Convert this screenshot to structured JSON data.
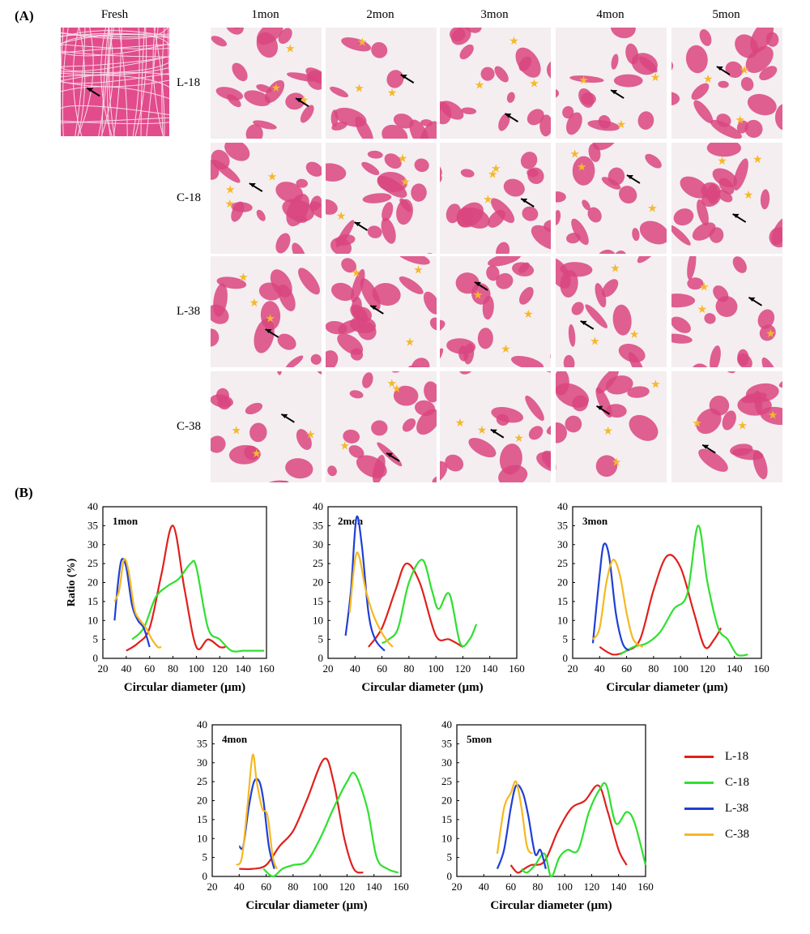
{
  "figure": {
    "panel_a_label": "(A)",
    "panel_b_label": "(B)",
    "fresh_label": "Fresh",
    "columns": [
      "1mon",
      "2mon",
      "3mon",
      "4mon",
      "5mon"
    ],
    "rows": [
      "L-18",
      "C-18",
      "L-38",
      "C-38"
    ]
  },
  "colors": {
    "L-18": "#e0201c",
    "C-18": "#2fe02f",
    "L-38": "#1f3fd6",
    "C-38": "#f5b820",
    "tissue": "#d9457f",
    "star": "#f5b82a"
  },
  "legend": [
    "L-18",
    "C-18",
    "L-38",
    "C-38"
  ],
  "chart_data": [
    {
      "type": "line",
      "title": "1mon",
      "xlabel": "Circular diameter (µm)",
      "ylabel": "Ratio (%)",
      "xlim": [
        20,
        160
      ],
      "ylim": [
        0,
        40
      ],
      "xticks": [
        20,
        40,
        60,
        80,
        100,
        120,
        140,
        160
      ],
      "yticks": [
        0,
        5,
        10,
        15,
        20,
        25,
        30,
        35,
        40
      ],
      "series": [
        {
          "name": "L-18",
          "x": [
            40,
            50,
            60,
            70,
            80,
            90,
            100,
            110,
            120,
            125
          ],
          "y": [
            2,
            4,
            8,
            22,
            35,
            18,
            3,
            5,
            3,
            3
          ]
        },
        {
          "name": "C-18",
          "x": [
            45,
            55,
            65,
            75,
            85,
            95,
            100,
            110,
            120,
            130,
            140,
            150,
            158
          ],
          "y": [
            5,
            8,
            16,
            19,
            21,
            25,
            24,
            8,
            5,
            2,
            2,
            2,
            2
          ]
        },
        {
          "name": "L-38",
          "x": [
            30,
            33,
            36,
            40,
            45,
            50,
            55,
            60
          ],
          "y": [
            10,
            20,
            26,
            24,
            14,
            10,
            8,
            3
          ]
        },
        {
          "name": "C-38",
          "x": [
            30,
            34,
            38,
            42,
            47,
            52,
            57,
            62,
            67,
            70
          ],
          "y": [
            15,
            18,
            26,
            23,
            13,
            10,
            8,
            5,
            3,
            3
          ]
        }
      ]
    },
    {
      "type": "line",
      "title": "2mon",
      "xlabel": "Circular diameter (µm)",
      "ylabel": "",
      "xlim": [
        20,
        160
      ],
      "ylim": [
        0,
        40
      ],
      "xticks": [
        20,
        40,
        60,
        80,
        100,
        120,
        140,
        160
      ],
      "yticks": [
        0,
        5,
        10,
        15,
        20,
        25,
        30,
        35,
        40
      ],
      "series": [
        {
          "name": "L-18",
          "x": [
            50,
            60,
            70,
            78,
            88,
            100,
            110,
            120
          ],
          "y": [
            3,
            8,
            18,
            25,
            20,
            6,
            5,
            3
          ]
        },
        {
          "name": "C-18",
          "x": [
            60,
            65,
            72,
            80,
            90,
            97,
            102,
            110,
            118,
            125,
            130
          ],
          "y": [
            4,
            5,
            8,
            20,
            26,
            18,
            13,
            17,
            4,
            5,
            9
          ]
        },
        {
          "name": "L-38",
          "x": [
            33,
            37,
            41,
            45,
            50,
            55,
            62
          ],
          "y": [
            6,
            18,
            37,
            30,
            12,
            5,
            2
          ]
        },
        {
          "name": "C-38",
          "x": [
            36,
            40,
            43,
            48,
            53,
            58,
            63,
            68
          ],
          "y": [
            12,
            26,
            27,
            18,
            12,
            8,
            5,
            3
          ]
        }
      ]
    },
    {
      "type": "line",
      "title": "3mon",
      "xlabel": "Circular diameter (µm)",
      "ylabel": "",
      "xlim": [
        20,
        160
      ],
      "ylim": [
        0,
        40
      ],
      "xticks": [
        20,
        40,
        60,
        80,
        100,
        120,
        140,
        160
      ],
      "yticks": [
        0,
        5,
        10,
        15,
        20,
        25,
        30,
        35,
        40
      ],
      "series": [
        {
          "name": "L-18",
          "x": [
            40,
            50,
            60,
            70,
            80,
            90,
            100,
            110,
            118,
            125,
            130
          ],
          "y": [
            3,
            1,
            2,
            5,
            18,
            27,
            24,
            12,
            3,
            5,
            8
          ]
        },
        {
          "name": "C-18",
          "x": [
            55,
            65,
            75,
            85,
            95,
            105,
            113,
            120,
            128,
            135,
            142,
            150
          ],
          "y": [
            1,
            3,
            4,
            7,
            13,
            17,
            35,
            20,
            8,
            5,
            1,
            1
          ]
        },
        {
          "name": "L-38",
          "x": [
            35,
            40,
            43,
            47,
            52,
            57,
            62
          ],
          "y": [
            4,
            22,
            30,
            27,
            12,
            4,
            2
          ]
        },
        {
          "name": "C-38",
          "x": [
            35,
            40,
            45,
            50,
            55,
            60,
            65,
            72
          ],
          "y": [
            5,
            8,
            20,
            26,
            22,
            12,
            5,
            3
          ]
        }
      ]
    },
    {
      "type": "line",
      "title": "4mon",
      "xlabel": "Circular diameter (µm)",
      "ylabel": "",
      "xlim": [
        20,
        160
      ],
      "ylim": [
        0,
        40
      ],
      "xticks": [
        20,
        40,
        60,
        80,
        100,
        120,
        140,
        160
      ],
      "yticks": [
        0,
        5,
        10,
        15,
        20,
        25,
        30,
        35,
        40
      ],
      "series": [
        {
          "name": "L-18",
          "x": [
            40,
            50,
            60,
            70,
            80,
            90,
            103,
            110,
            118,
            125,
            132
          ],
          "y": [
            2,
            2,
            3,
            8,
            12,
            20,
            31,
            25,
            10,
            2,
            1
          ]
        },
        {
          "name": "C-18",
          "x": [
            58,
            65,
            72,
            80,
            90,
            100,
            110,
            120,
            126,
            135,
            142,
            150,
            158
          ],
          "y": [
            2,
            0,
            2,
            3,
            4,
            10,
            18,
            25,
            27,
            18,
            5,
            2,
            1
          ]
        },
        {
          "name": "L-38",
          "x": [
            40,
            43,
            47,
            51,
            55,
            58,
            62,
            66
          ],
          "y": [
            8,
            8,
            18,
            25,
            25,
            20,
            8,
            2
          ]
        },
        {
          "name": "C-38",
          "x": [
            38,
            42,
            46,
            50,
            53,
            57,
            61,
            65,
            68
          ],
          "y": [
            3,
            5,
            18,
            32,
            25,
            18,
            16,
            5,
            2
          ]
        }
      ]
    },
    {
      "type": "line",
      "title": "5mon",
      "xlabel": "Circular diameter (µm)",
      "ylabel": "",
      "xlim": [
        20,
        160
      ],
      "ylim": [
        0,
        40
      ],
      "xticks": [
        20,
        40,
        60,
        80,
        100,
        120,
        140,
        160
      ],
      "yticks": [
        0,
        5,
        10,
        15,
        20,
        25,
        30,
        35,
        40
      ],
      "series": [
        {
          "name": "L-18",
          "x": [
            60,
            65,
            70,
            75,
            85,
            95,
            105,
            115,
            125,
            132,
            140,
            146
          ],
          "y": [
            3,
            1,
            2,
            3,
            4,
            12,
            18,
            20,
            24,
            17,
            7,
            3
          ]
        },
        {
          "name": "C-18",
          "x": [
            68,
            72,
            78,
            85,
            90,
            96,
            102,
            110,
            118,
            126,
            131,
            138,
            146,
            152,
            160
          ],
          "y": [
            2,
            1,
            3,
            6,
            0,
            5,
            7,
            7,
            17,
            23,
            24,
            14,
            17,
            14,
            3
          ]
        },
        {
          "name": "L-38",
          "x": [
            50,
            55,
            60,
            64,
            69,
            73,
            78,
            82,
            86
          ],
          "y": [
            2,
            7,
            18,
            24,
            22,
            16,
            6,
            7,
            2
          ]
        },
        {
          "name": "C-38",
          "x": [
            50,
            55,
            60,
            64,
            68,
            72,
            76
          ],
          "y": [
            6,
            18,
            22,
            25,
            18,
            8,
            6
          ]
        }
      ]
    }
  ]
}
